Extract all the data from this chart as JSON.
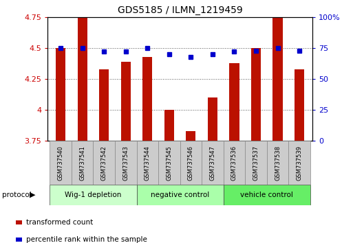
{
  "title": "GDS5185 / ILMN_1219459",
  "samples": [
    "GSM737540",
    "GSM737541",
    "GSM737542",
    "GSM737543",
    "GSM737544",
    "GSM737545",
    "GSM737546",
    "GSM737547",
    "GSM737536",
    "GSM737537",
    "GSM737538",
    "GSM737539"
  ],
  "transformed_count": [
    4.5,
    4.75,
    4.33,
    4.39,
    4.43,
    4.0,
    3.83,
    4.1,
    4.38,
    4.5,
    4.75,
    4.33
  ],
  "percentile_rank": [
    75,
    75,
    72,
    72,
    75,
    70,
    68,
    70,
    72,
    73,
    75,
    73
  ],
  "ylim_left": [
    3.75,
    4.75
  ],
  "ylim_right": [
    0,
    100
  ],
  "yticks_left": [
    3.75,
    4.0,
    4.25,
    4.5,
    4.75
  ],
  "yticks_right": [
    0,
    25,
    50,
    75,
    100
  ],
  "ytick_labels_left": [
    "3.75",
    "4",
    "4.25",
    "4.5",
    "4.75"
  ],
  "ytick_labels_right": [
    "0",
    "25",
    "50",
    "75",
    "100%"
  ],
  "bar_color": "#bb1100",
  "dot_color": "#0000cc",
  "grid_color": "#333333",
  "group_defs": [
    {
      "label": "Wig-1 depletion",
      "start": 0,
      "end": 3,
      "color": "#ccffcc"
    },
    {
      "label": "negative control",
      "start": 4,
      "end": 7,
      "color": "#aaffaa"
    },
    {
      "label": "vehicle control",
      "start": 8,
      "end": 11,
      "color": "#66ee66"
    }
  ],
  "legend_red_label": "transformed count",
  "legend_blue_label": "percentile rank within the sample",
  "protocol_label": "protocol",
  "bar_width": 0.45,
  "sample_box_color": "#cccccc",
  "sample_box_edge": "#888888"
}
